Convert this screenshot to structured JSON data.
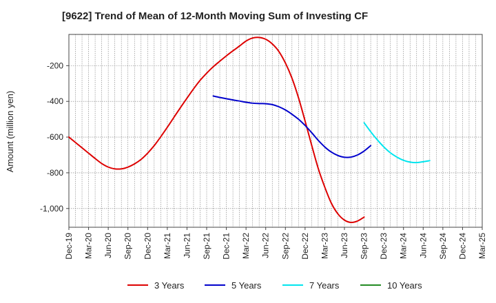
{
  "chart_data": {
    "type": "line",
    "title": "[9622]  Trend of Mean of 12-Month Moving Sum of Investing CF",
    "xlabel": "",
    "ylabel": "Amount (million yen)",
    "categories": [
      "Dec-19",
      "Mar-20",
      "Jun-20",
      "Sep-20",
      "Dec-20",
      "Mar-21",
      "Jun-21",
      "Sep-21",
      "Dec-21",
      "Mar-22",
      "Jun-22",
      "Sep-22",
      "Dec-22",
      "Mar-23",
      "Jun-23",
      "Sep-23",
      "Dec-23",
      "Mar-24",
      "Jun-24",
      "Sep-24",
      "Dec-24",
      "Mar-25"
    ],
    "yticks": [
      -200,
      -400,
      -600,
      -800,
      -1000
    ],
    "ytick_labels": [
      "-200",
      "-400",
      "-600",
      "-800",
      "-1,000"
    ],
    "ylim": [
      -1105,
      -25
    ],
    "grid": true,
    "legend_position": "bottom",
    "series": [
      {
        "name": "3 Years",
        "color": "#dd0000",
        "points": [
          [
            0,
            -600
          ],
          [
            1,
            -630
          ],
          [
            2,
            -660
          ],
          [
            3,
            -690
          ],
          [
            4,
            -720
          ],
          [
            5,
            -748
          ],
          [
            6,
            -768
          ],
          [
            7,
            -778
          ],
          [
            8,
            -778
          ],
          [
            9,
            -768
          ],
          [
            10,
            -750
          ],
          [
            11,
            -725
          ],
          [
            12,
            -690
          ],
          [
            13,
            -648
          ],
          [
            14,
            -598
          ],
          [
            15,
            -545
          ],
          [
            16,
            -490
          ],
          [
            17,
            -435
          ],
          [
            18,
            -382
          ],
          [
            19,
            -330
          ],
          [
            20,
            -282
          ],
          [
            21,
            -242
          ],
          [
            22,
            -206
          ],
          [
            23,
            -175
          ],
          [
            24,
            -145
          ],
          [
            25,
            -117
          ],
          [
            26,
            -90
          ],
          [
            27,
            -62
          ],
          [
            28,
            -45
          ],
          [
            29,
            -42
          ],
          [
            30,
            -52
          ],
          [
            31,
            -78
          ],
          [
            32,
            -120
          ],
          [
            33,
            -185
          ],
          [
            34,
            -270
          ],
          [
            35,
            -380
          ],
          [
            36,
            -510
          ],
          [
            37,
            -645
          ],
          [
            38,
            -775
          ],
          [
            39,
            -880
          ],
          [
            40,
            -970
          ],
          [
            41,
            -1030
          ],
          [
            42,
            -1065
          ],
          [
            43,
            -1078
          ],
          [
            44,
            -1070
          ],
          [
            45,
            -1048
          ]
        ]
      },
      {
        "name": "5 Years",
        "color": "#0000cc",
        "points": [
          [
            22,
            -370
          ],
          [
            23,
            -378
          ],
          [
            24,
            -385
          ],
          [
            25,
            -392
          ],
          [
            26,
            -398
          ],
          [
            27,
            -405
          ],
          [
            28,
            -410
          ],
          [
            29,
            -412
          ],
          [
            30,
            -413
          ],
          [
            31,
            -418
          ],
          [
            32,
            -430
          ],
          [
            33,
            -448
          ],
          [
            34,
            -472
          ],
          [
            35,
            -500
          ],
          [
            36,
            -535
          ],
          [
            37,
            -575
          ],
          [
            38,
            -618
          ],
          [
            39,
            -655
          ],
          [
            40,
            -684
          ],
          [
            41,
            -703
          ],
          [
            42,
            -713
          ],
          [
            43,
            -712
          ],
          [
            44,
            -700
          ],
          [
            45,
            -678
          ],
          [
            46,
            -648
          ]
        ]
      },
      {
        "name": "7 Years",
        "color": "#00e5ee",
        "points": [
          [
            45,
            -520
          ],
          [
            46,
            -570
          ],
          [
            47,
            -615
          ],
          [
            48,
            -655
          ],
          [
            49,
            -688
          ],
          [
            50,
            -712
          ],
          [
            51,
            -730
          ],
          [
            52,
            -740
          ],
          [
            53,
            -743
          ],
          [
            54,
            -738
          ],
          [
            55,
            -732
          ]
        ]
      },
      {
        "name": "10 Years",
        "color": "#228b22",
        "points": []
      }
    ]
  }
}
